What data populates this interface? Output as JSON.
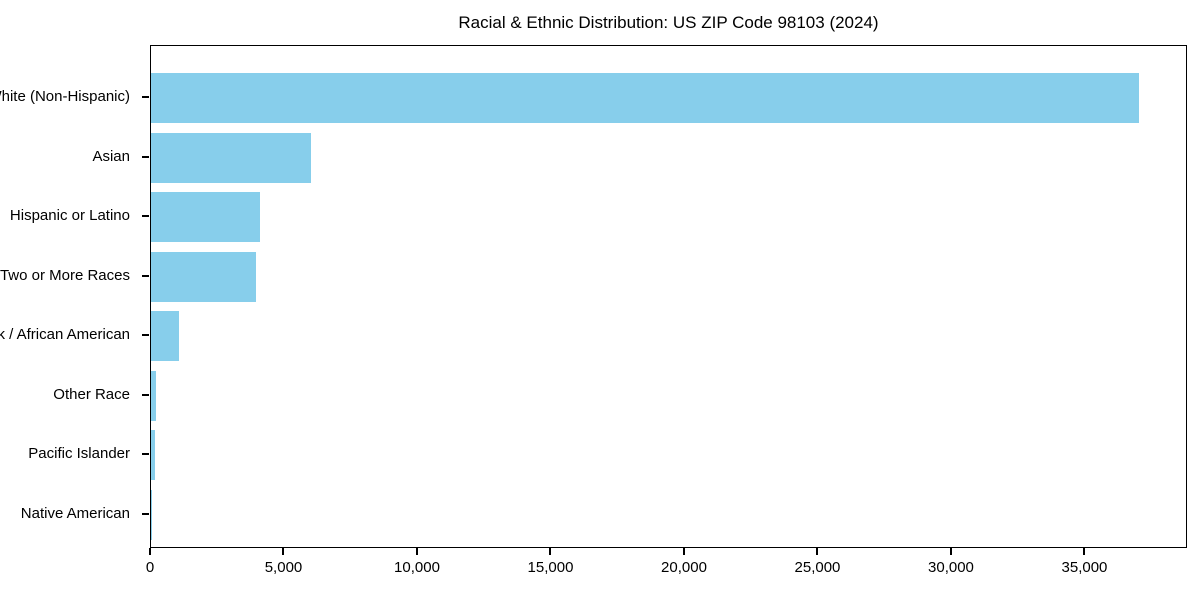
{
  "title": "Racial & Ethnic Distribution: US ZIP Code 98103 (2024)",
  "chart_data": {
    "type": "bar",
    "orientation": "horizontal",
    "title": "Racial & Ethnic Distribution: US ZIP Code 98103 (2024)",
    "categories": [
      "White (Non-Hispanic)",
      "Asian",
      "Hispanic or Latino",
      "Two or More Races",
      "Black / African American",
      "Other Race",
      "Pacific Islander",
      "Native American"
    ],
    "values": [
      37000,
      6000,
      4100,
      3950,
      1050,
      200,
      150,
      40
    ],
    "xlabel": "",
    "ylabel": "",
    "xlim": [
      0,
      38840
    ],
    "x_ticks": [
      0,
      5000,
      10000,
      15000,
      20000,
      25000,
      30000,
      35000
    ],
    "x_tick_labels": [
      "0",
      "5,000",
      "10,000",
      "15,000",
      "20,000",
      "25,000",
      "30,000",
      "35,000"
    ],
    "bar_color": "#87ceeb",
    "axis_color": "#000000",
    "background_color": "#ffffff",
    "grid": false,
    "legend": null
  }
}
